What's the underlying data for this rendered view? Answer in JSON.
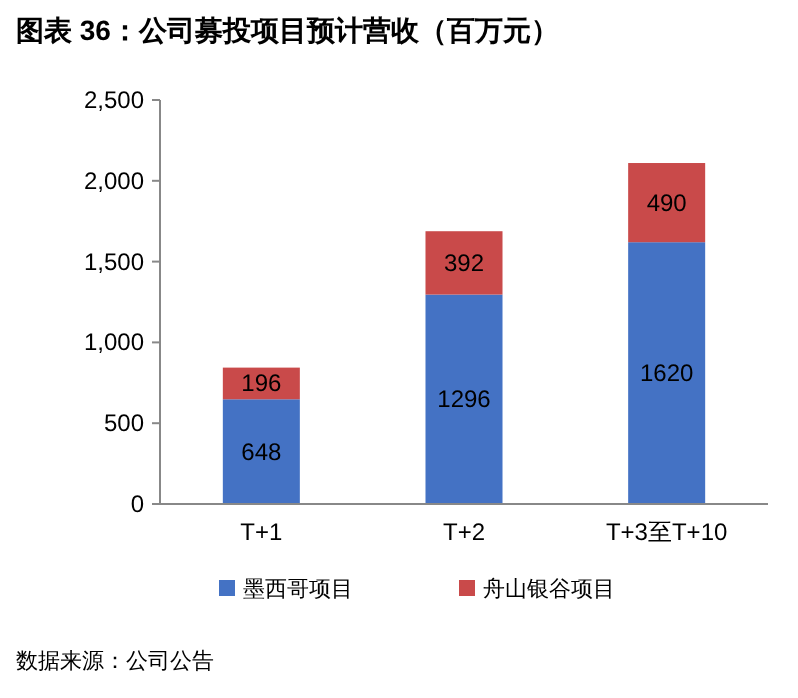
{
  "chart_data": {
    "type": "bar",
    "title": "图表 36：公司募投项目预计营收（百万元）",
    "categories": [
      "T+1",
      "T+2",
      "T+3至T+10"
    ],
    "stacked": true,
    "data_labels": true,
    "legend": "bottom",
    "grid": false,
    "series": [
      {
        "name": "墨西哥项目",
        "color": "#4472c4",
        "values": [
          648,
          1296,
          1620
        ]
      },
      {
        "name": "舟山银谷项目",
        "color": "#c94a4a",
        "values": [
          196,
          392,
          490
        ]
      }
    ],
    "ylim": [
      0,
      2500
    ],
    "yticks": [
      0,
      {
        "value": 500,
        "label": "500"
      },
      {
        "value": 1000,
        "label": "1,000"
      },
      {
        "value": 1500,
        "label": "1,500"
      },
      {
        "value": 2000,
        "label": "2,000"
      },
      {
        "value": 2500,
        "label": "2,500"
      }
    ],
    "annotations": [
      "数据来源：公司公告"
    ]
  }
}
